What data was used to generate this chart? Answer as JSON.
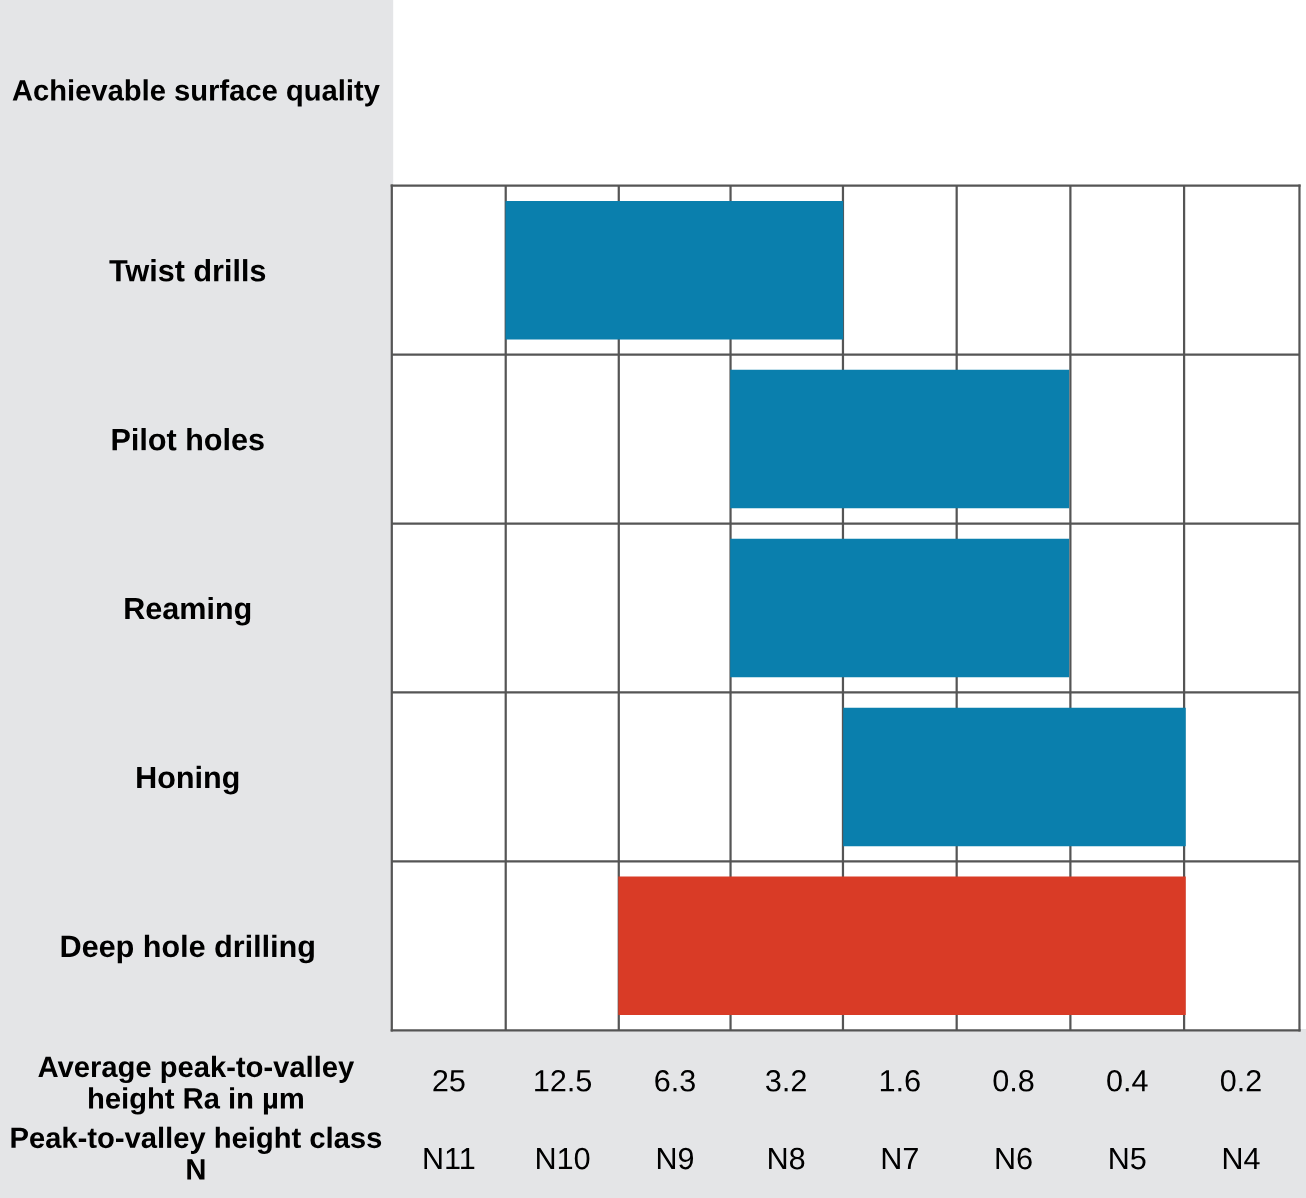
{
  "chart_data": {
    "type": "bar",
    "orientation": "horizontal",
    "title": "Achievable surface quality",
    "categories": [
      "Twist drills",
      "Pilot holes",
      "Reaming",
      "Honing",
      "Deep hole drilling"
    ],
    "base": [
      2.26,
      0.57,
      0.57,
      0.28,
      0.28
    ],
    "values": [
      15.44,
      3.93,
      3.93,
      1.98,
      8.62
    ],
    "colors": [
      "#0a7fad",
      "#0a7fad",
      "#0a7fad",
      "#0a7fad",
      "#d93b26"
    ],
    "log": "x",
    "xlim": [
      35.4,
      0.14
    ],
    "xticks": [
      25,
      12.5,
      6.3,
      3.2,
      1.6,
      0.8,
      0.4,
      0.2
    ],
    "xlabel": "Average peak-to-valley height Ra in µm",
    "annotations": [
      "Peak-to-valley height class N",
      "N11",
      "N10",
      "N9",
      "N8",
      "N7",
      "N6",
      "N5",
      "N4"
    ],
    "grid": true
  }
}
